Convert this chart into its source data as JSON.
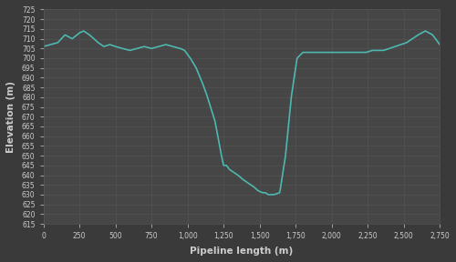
{
  "title": "",
  "xlabel": "Pipeline length (m)",
  "ylabel": "Elevation (m)",
  "background_color": "#3a3a3a",
  "plot_bg_color": "#464646",
  "line_color": "#4db8b0",
  "line_width": 1.2,
  "grid_color": "#5a5a5a",
  "tick_color": "#cccccc",
  "label_color": "#cccccc",
  "xlim": [
    0,
    2750
  ],
  "ylim": [
    615,
    725
  ],
  "xticks": [
    0,
    250,
    500,
    750,
    1000,
    1250,
    1500,
    1750,
    2000,
    2250,
    2500,
    2750
  ],
  "yticks": [
    615,
    620,
    625,
    630,
    635,
    640,
    645,
    650,
    655,
    660,
    665,
    670,
    675,
    680,
    685,
    690,
    695,
    700,
    705,
    710,
    715,
    720,
    725
  ],
  "x": [
    0,
    50,
    100,
    150,
    200,
    250,
    280,
    320,
    350,
    380,
    420,
    460,
    500,
    550,
    600,
    650,
    700,
    750,
    800,
    850,
    900,
    950,
    980,
    1020,
    1060,
    1100,
    1130,
    1160,
    1190,
    1210,
    1230,
    1250,
    1270,
    1290,
    1310,
    1330,
    1350,
    1380,
    1400,
    1420,
    1440,
    1460,
    1490,
    1520,
    1540,
    1560,
    1600,
    1640,
    1680,
    1720,
    1760,
    1800,
    1840,
    1880,
    1920,
    1960,
    2000,
    2040,
    2080,
    2120,
    2160,
    2200,
    2240,
    2280,
    2320,
    2360,
    2400,
    2440,
    2480,
    2520,
    2560,
    2600,
    2650,
    2700,
    2750
  ],
  "y": [
    706,
    707,
    708,
    712,
    710,
    713,
    714,
    712,
    710,
    708,
    706,
    707,
    706,
    705,
    704,
    705,
    706,
    705,
    706,
    707,
    706,
    705,
    704,
    700,
    695,
    688,
    682,
    675,
    668,
    660,
    652,
    645,
    645,
    643,
    642,
    641,
    640,
    638,
    637,
    636,
    635,
    634,
    632,
    631,
    631,
    630,
    630,
    631,
    650,
    680,
    700,
    703,
    703,
    703,
    703,
    703,
    703,
    703,
    703,
    703,
    703,
    703,
    703,
    704,
    704,
    704,
    705,
    706,
    707,
    708,
    710,
    712,
    714,
    712,
    707
  ]
}
